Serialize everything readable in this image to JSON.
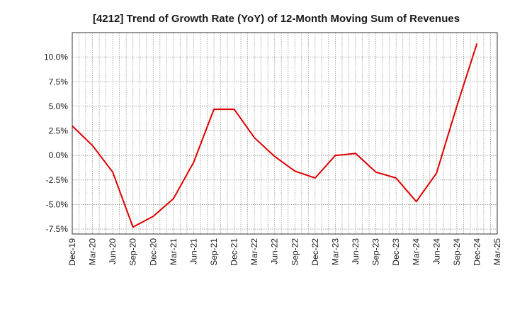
{
  "chart_data": {
    "type": "line",
    "title": "[4212]  Trend of Growth Rate (YoY) of 12-Month Moving Sum of Revenues",
    "xlabel": "",
    "ylabel": "",
    "x_ticks": [
      "Dec-19",
      "Mar-20",
      "Jun-20",
      "Sep-20",
      "Dec-20",
      "Mar-21",
      "Jun-21",
      "Sep-21",
      "Dec-21",
      "Mar-22",
      "Jun-22",
      "Sep-22",
      "Dec-22",
      "Mar-23",
      "Jun-23",
      "Sep-23",
      "Dec-23",
      "Mar-24",
      "Jun-24",
      "Sep-24",
      "Dec-24",
      "Mar-25"
    ],
    "y_ticks": [
      -7.5,
      -5.0,
      -2.5,
      0.0,
      2.5,
      5.0,
      7.5,
      10.0
    ],
    "y_tick_labels": [
      "-7.5%",
      "-5.0%",
      "-2.5%",
      "0.0%",
      "2.5%",
      "5.0%",
      "7.5%",
      "10.0%"
    ],
    "ylim": [
      -8.0,
      12.5
    ],
    "grid": true,
    "series": [
      {
        "color": "#e00000",
        "x": [
          "Dec-19",
          "Mar-20",
          "Jun-20",
          "Sep-20",
          "Dec-20",
          "Mar-21",
          "Jun-21",
          "Sep-21",
          "Dec-21",
          "Mar-22",
          "Jun-22",
          "Sep-22",
          "Dec-22",
          "Mar-23",
          "Jun-23",
          "Sep-23",
          "Dec-23",
          "Mar-24",
          "Jun-24",
          "Sep-24",
          "Dec-24"
        ],
        "values": [
          3.0,
          1.0,
          -1.7,
          -7.3,
          -6.2,
          -4.4,
          -0.7,
          4.7,
          4.7,
          1.8,
          -0.1,
          -1.6,
          -2.3,
          0.0,
          0.2,
          -1.7,
          -2.3,
          -4.7,
          -1.8,
          5.0,
          11.4
        ]
      }
    ]
  }
}
